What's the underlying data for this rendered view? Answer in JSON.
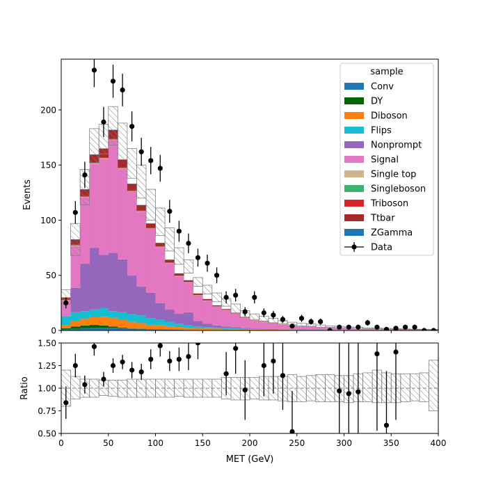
{
  "chart_data": [
    {
      "type": "histogram-stack",
      "title": "",
      "xlabel": "",
      "ylabel": "Events",
      "xlim": [
        0,
        400
      ],
      "ylim": [
        0,
        246
      ],
      "xticks": [
        0,
        50,
        100,
        150,
        200,
        250,
        300,
        350,
        400
      ],
      "yticks": [
        0,
        50,
        100,
        150,
        200
      ],
      "bin_edges": [
        0,
        10,
        20,
        30,
        40,
        50,
        60,
        70,
        80,
        90,
        100,
        110,
        120,
        130,
        140,
        150,
        160,
        170,
        180,
        190,
        200,
        210,
        220,
        230,
        240,
        250,
        260,
        270,
        280,
        290,
        300,
        310,
        320,
        330,
        340,
        350,
        360,
        370,
        380,
        390,
        400
      ],
      "series": [
        {
          "name": "Conv",
          "color": "#1f77b4",
          "values": [
            1,
            1.5,
            2,
            2.5,
            2.5,
            2.5,
            2,
            1.5,
            1.5,
            1,
            1,
            0.8,
            0.6,
            0.5,
            0.4,
            0.3,
            0.3,
            0.2,
            0.2,
            0.2,
            0.1,
            0.1,
            0.1,
            0.1,
            0.1,
            0,
            0,
            0,
            0,
            0,
            0,
            0,
            0,
            0,
            0,
            0,
            0,
            0,
            0,
            0
          ]
        },
        {
          "name": "DY",
          "color": "#006400",
          "values": [
            1,
            2,
            2.5,
            2.5,
            2,
            1,
            0.5,
            0.3,
            0.2,
            0.1,
            0.1,
            0.1,
            0,
            0,
            0,
            0,
            0,
            0,
            0,
            0,
            0,
            0,
            0,
            0,
            0,
            0,
            0,
            0,
            0,
            0,
            0,
            0,
            0,
            0,
            0,
            0,
            0,
            0,
            0,
            0
          ]
        },
        {
          "name": "Diboson",
          "color": "#ff7f0e",
          "values": [
            3,
            5,
            6,
            7,
            8,
            8,
            7,
            6,
            5,
            4,
            3.5,
            3,
            2.5,
            2,
            1.8,
            1.5,
            1.3,
            1.1,
            1,
            0.8,
            0.7,
            0.6,
            0.5,
            0.5,
            0.4,
            0.4,
            0.3,
            0.3,
            0.3,
            0.2,
            0.2,
            0.2,
            0.2,
            0.1,
            0.1,
            0.1,
            0.1,
            0.1,
            0.1,
            0.1
          ]
        },
        {
          "name": "Flips",
          "color": "#17becf",
          "values": [
            8,
            8,
            7,
            7,
            8,
            6,
            7,
            7,
            7,
            6,
            5,
            4,
            3,
            2,
            1.5,
            1.2,
            1,
            0.8,
            0.6,
            0.5,
            0.4,
            0.3,
            0.3,
            0.2,
            0.2,
            0.2,
            0.1,
            0.1,
            0.1,
            0.1,
            0,
            0,
            0,
            0,
            0,
            0,
            0,
            0,
            0,
            0
          ]
        },
        {
          "name": "Nonprompt",
          "color": "#9467bd",
          "values": [
            0,
            22,
            43,
            56,
            48,
            53,
            48,
            35,
            26,
            23,
            15,
            11,
            9,
            12,
            5,
            3,
            2,
            1.5,
            1,
            0.8,
            0.6,
            0.5,
            0.4,
            0.3,
            0.3,
            0.3,
            0.2,
            0.2,
            0.1,
            0.1,
            0.1,
            0.1,
            0.1,
            0.1,
            0.1,
            0,
            0,
            0,
            0,
            0
          ]
        },
        {
          "name": "Signal",
          "color": "#e377c2",
          "values": [
            14,
            38,
            60,
            76,
            87,
            102,
            82,
            76,
            68,
            58,
            51,
            42,
            34,
            27,
            23,
            21,
            17,
            15,
            12,
            9,
            7,
            6,
            5,
            4,
            3,
            3,
            3,
            2,
            2,
            1.5,
            1.5,
            1,
            1,
            1,
            1,
            1,
            0.5,
            0.5,
            0.5,
            0.5
          ]
        },
        {
          "name": "Single top",
          "color": "#d2b48c",
          "values": [
            0.3,
            0.5,
            0.5,
            0.5,
            0.5,
            0.5,
            0.5,
            0.4,
            0.4,
            0.3,
            0.3,
            0.3,
            0.2,
            0.2,
            0.2,
            0.2,
            0.1,
            0.1,
            0.1,
            0.1,
            0.1,
            0.1,
            0.1,
            0,
            0,
            0,
            0,
            0,
            0,
            0,
            0,
            0,
            0,
            0,
            0,
            0,
            0,
            0,
            0,
            0
          ]
        },
        {
          "name": "Singleboson",
          "color": "#3cb371",
          "values": [
            0.2,
            0.3,
            0.3,
            0.3,
            0.3,
            0.2,
            0.2,
            0.2,
            0.1,
            0.1,
            0.1,
            0.1,
            0.1,
            0.1,
            0.1,
            0,
            0,
            0,
            0,
            0,
            0,
            0,
            0,
            0,
            0,
            0,
            0,
            0,
            0,
            0,
            0,
            0,
            0,
            0,
            0,
            0,
            0,
            0,
            0,
            0
          ]
        },
        {
          "name": "Triboson",
          "color": "#d62728",
          "values": [
            0.3,
            0.5,
            0.5,
            0.5,
            0.5,
            0.5,
            0.5,
            0.5,
            0.4,
            0.4,
            0.3,
            0.3,
            0.3,
            0.2,
            0.2,
            0.2,
            0.2,
            0.1,
            0.1,
            0.1,
            0.1,
            0.1,
            0.1,
            0.1,
            0.1,
            0,
            0,
            0,
            0,
            0,
            0,
            0,
            0,
            0,
            0,
            0,
            0,
            0,
            0,
            0
          ]
        },
        {
          "name": "Ttbar",
          "color": "#a52a2a",
          "values": [
            2,
            4.5,
            6,
            7,
            8,
            8,
            7,
            6,
            5,
            4,
            3,
            2.5,
            2,
            1.5,
            1.3,
            1,
            0.8,
            0.6,
            0.5,
            0.4,
            0.3,
            0.3,
            0.2,
            0.2,
            0.2,
            0.1,
            0.1,
            0.1,
            0.1,
            0.1,
            0,
            0,
            0,
            0,
            0,
            0,
            0,
            0,
            0,
            0
          ]
        },
        {
          "name": "ZGamma",
          "color": "#1f77b4",
          "values": [
            0.2,
            0.3,
            0.3,
            0.3,
            0.3,
            0.3,
            0.3,
            0.2,
            0.2,
            0.2,
            0.2,
            0.1,
            0.1,
            0.1,
            0.1,
            0.1,
            0.1,
            0,
            0,
            0,
            0,
            0,
            0,
            0,
            0,
            0,
            0,
            0,
            0,
            0,
            0,
            0,
            0,
            0,
            0,
            0,
            0,
            0,
            0,
            0
          ]
        }
      ],
      "uncertainty_totals": {
        "down": [
          24,
          68,
          114,
          152,
          160,
          168,
          155,
          138,
          120,
          100,
          86,
          72,
          60,
          52,
          40,
          33,
          26,
          22,
          16,
          12.5,
          10,
          8.5,
          7,
          6,
          5,
          4,
          3.8,
          3,
          2.8,
          2.5,
          2.2,
          1.8,
          1.6,
          1.4,
          1.2,
          1,
          0.9,
          0.8,
          0.7,
          0.6
        ],
        "up": [
          37,
          97,
          146,
          183,
          187,
          203,
          188,
          165,
          150,
          128,
          111,
          93,
          75,
          64,
          48,
          41,
          34,
          29,
          24,
          18,
          15,
          13,
          11,
          9,
          7.5,
          6.5,
          6,
          5,
          4.2,
          3.8,
          3.2,
          2.8,
          2.4,
          2.2,
          1.9,
          1.6,
          1.4,
          1.2,
          1.1,
          1
        ]
      },
      "data_points": {
        "name": "Data",
        "x": [
          5,
          15,
          25,
          35,
          45,
          55,
          65,
          75,
          85,
          95,
          105,
          115,
          125,
          135,
          145,
          155,
          165,
          175,
          185,
          195,
          205,
          215,
          225,
          235,
          245,
          255,
          265,
          275,
          285,
          295,
          305,
          315,
          325,
          335,
          345,
          355,
          365,
          375,
          385,
          395
        ],
        "y": [
          25,
          107,
          141,
          236,
          189,
          226,
          218,
          185,
          162,
          154,
          147,
          108,
          90,
          79,
          66,
          61,
          50,
          30,
          32,
          17,
          30,
          16,
          14,
          10,
          4,
          11,
          8,
          8,
          0,
          3,
          3,
          3,
          7,
          3,
          1,
          2,
          3,
          3,
          0,
          0
        ],
        "err": [
          5,
          10.3,
          11.9,
          15.4,
          13.7,
          15,
          14.8,
          13.6,
          12.7,
          12.4,
          12.1,
          10.4,
          9.5,
          8.9,
          8.1,
          7.8,
          7.1,
          5.5,
          5.7,
          4.1,
          5.5,
          4,
          3.7,
          3.2,
          2,
          3.3,
          2.8,
          2.8,
          0,
          1.7,
          1.7,
          1.7,
          2.6,
          1.7,
          1,
          1.4,
          1.7,
          1.7,
          0,
          0
        ]
      },
      "legend": {
        "title": "sample",
        "placement": "top-right",
        "data_label": "Data"
      }
    },
    {
      "type": "scatter",
      "title": "",
      "xlabel": "MET (GeV)",
      "ylabel": "Ratio",
      "xlim": [
        0,
        400
      ],
      "ylim": [
        0.5,
        1.5
      ],
      "xticks": [
        0,
        50,
        100,
        150,
        200,
        250,
        300,
        350,
        400
      ],
      "yticks": [
        0.5,
        0.75,
        1.0,
        1.25,
        1.5
      ],
      "ytick_labels": [
        "0.50",
        "0.75",
        "1.00",
        "1.25",
        "1.50"
      ],
      "reference_line": 1.0,
      "band_down": [
        0.8,
        0.88,
        0.9,
        0.9,
        0.92,
        0.91,
        0.9,
        0.9,
        0.9,
        0.9,
        0.9,
        0.9,
        0.91,
        0.9,
        0.9,
        0.9,
        0.9,
        0.88,
        0.87,
        0.87,
        0.88,
        0.87,
        0.87,
        0.86,
        0.85,
        0.85,
        0.86,
        0.85,
        0.85,
        0.85,
        0.84,
        0.85,
        0.85,
        0.84,
        0.84,
        0.84,
        0.85,
        0.86,
        0.85,
        0.75
      ],
      "band_up": [
        1.2,
        1.13,
        1.1,
        1.1,
        1.09,
        1.09,
        1.09,
        1.1,
        1.1,
        1.1,
        1.1,
        1.1,
        1.1,
        1.1,
        1.1,
        1.1,
        1.1,
        1.12,
        1.12,
        1.12,
        1.12,
        1.13,
        1.13,
        1.13,
        1.15,
        1.13,
        1.14,
        1.15,
        1.15,
        1.14,
        1.14,
        1.16,
        1.17,
        1.2,
        1.17,
        1.16,
        1.16,
        1.16,
        1.17,
        1.31
      ],
      "x": [
        5,
        15,
        25,
        35,
        45,
        55,
        65,
        75,
        85,
        95,
        105,
        115,
        125,
        135,
        145,
        155,
        165,
        175,
        185,
        195,
        205,
        215,
        225,
        235,
        245,
        255,
        265,
        275,
        285,
        295,
        305,
        315,
        325,
        335,
        345,
        355,
        365,
        375,
        385,
        395
      ],
      "y": [
        0.84,
        1.25,
        1.04,
        1.46,
        1.1,
        1.25,
        1.29,
        1.2,
        1.18,
        1.32,
        1.47,
        1.3,
        1.32,
        1.35,
        1.5,
        null,
        null,
        1.16,
        1.44,
        0.98,
        null,
        1.25,
        1.3,
        1.14,
        0.52,
        null,
        null,
        null,
        null,
        0.97,
        0.94,
        0.96,
        null,
        1.38,
        0.59,
        1.4,
        null,
        null,
        null,
        null
      ],
      "err": [
        0.18,
        0.13,
        0.1,
        0.1,
        0.08,
        0.08,
        0.08,
        0.09,
        0.09,
        0.11,
        0.12,
        0.11,
        0.13,
        0.15,
        0.18,
        0,
        0,
        0.24,
        0.28,
        0.33,
        0,
        0.34,
        0.36,
        0.38,
        0.45,
        0,
        0,
        0,
        0,
        0.6,
        0.6,
        0.6,
        0,
        0.85,
        0.6,
        0.75,
        0,
        0,
        0,
        0
      ]
    }
  ]
}
